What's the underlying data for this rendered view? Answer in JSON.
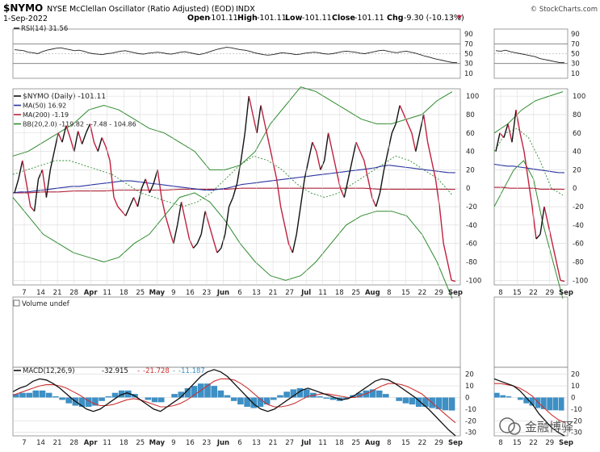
{
  "header": {
    "symbol": "$NYMO",
    "description": "NYSE McClellan Oscillator (Ratio Adjusted) (EOD)",
    "exchange": "INDX",
    "date": "1-Sep-2022",
    "open_label": "Open",
    "open": "-101.11",
    "high_label": "High",
    "high": "-101.11",
    "low_label": "Low",
    "low": "-101.11",
    "close_label": "Close",
    "close": "-101.11",
    "chg_label": "Chg",
    "chg": "-9.30 (-10.13%)",
    "source": "© StockCharts.com"
  },
  "watermark": "金融博驿",
  "colors": {
    "price": "#111111",
    "price_down": "#c0203e",
    "ma50": "#2a34a0",
    "ma200": "#b0243a",
    "bb": "#2e8b2e",
    "bb_mid": "#2e8b2e",
    "hist": "#3d8fc4",
    "signal": "#cc3333",
    "macd": "#111111",
    "grid": "#d8d8d8",
    "frame": "#888888"
  },
  "chart_data": {
    "type": "line",
    "x_tick_labels": [
      "7",
      "14",
      "21",
      "28",
      "Apr",
      "11",
      "18",
      "25",
      "May",
      "9",
      "16",
      "23",
      "Jun",
      "6",
      "13",
      "21",
      "27",
      "Jul",
      "11",
      "18",
      "25",
      "Aug",
      "8",
      "15",
      "22",
      "29",
      "Sep"
    ],
    "x_tick_months": [
      "Apr",
      "May",
      "Jun",
      "Jul",
      "Aug",
      "Sep"
    ],
    "zoom_tick_labels": [
      "8",
      "15",
      "22",
      "29",
      "Sep"
    ],
    "rsi": {
      "legend": "RSI(14) 31.56",
      "y_ticks": [
        90,
        70,
        50,
        30,
        10
      ],
      "ylim": [
        0,
        100
      ],
      "values": [
        58,
        57,
        56,
        53,
        52,
        50,
        54,
        57,
        59,
        61,
        62,
        60,
        58,
        56,
        57,
        55,
        52,
        50,
        49,
        48,
        50,
        51,
        53,
        55,
        56,
        54,
        52,
        50,
        49,
        51,
        52,
        53,
        52,
        50,
        49,
        51,
        53,
        54,
        52,
        50,
        48,
        50,
        53,
        56,
        59,
        61,
        63,
        62,
        60,
        58,
        57,
        55,
        52,
        50,
        48,
        47,
        48,
        50,
        52,
        51,
        50,
        48,
        49,
        51,
        52,
        53,
        52,
        50,
        49,
        50,
        52,
        54,
        55,
        54,
        53,
        51,
        50,
        52,
        54,
        56,
        57,
        55,
        53,
        52,
        54,
        55,
        53,
        51,
        48,
        45,
        43,
        40,
        38,
        36,
        34,
        32,
        31.56
      ]
    },
    "main": {
      "legends": [
        "$NYMO (Daily) -101.11",
        "MA(50) 16.92",
        "MA(200) -1.19",
        "BB(20,2.0) -119.82 - -7.48 - 104.86"
      ],
      "y_ticks": [
        100,
        80,
        60,
        40,
        20,
        0,
        -20,
        -40,
        -60,
        -80,
        -100
      ],
      "ylim": [
        -105,
        108
      ],
      "nymo": [
        -5,
        10,
        30,
        5,
        -20,
        -25,
        10,
        20,
        -10,
        20,
        40,
        60,
        50,
        68,
        55,
        40,
        62,
        48,
        60,
        70,
        50,
        40,
        55,
        45,
        30,
        -10,
        -20,
        -25,
        -30,
        -20,
        -10,
        -20,
        0,
        10,
        -5,
        5,
        20,
        -10,
        -30,
        -45,
        -60,
        -40,
        -15,
        -35,
        -55,
        -65,
        -60,
        -50,
        -25,
        -40,
        -55,
        -70,
        -65,
        -50,
        -20,
        -10,
        5,
        30,
        60,
        100,
        80,
        60,
        90,
        70,
        50,
        30,
        10,
        -20,
        -40,
        -60,
        -70,
        -50,
        -20,
        10,
        30,
        50,
        40,
        20,
        30,
        60,
        40,
        20,
        0,
        -10,
        10,
        30,
        50,
        40,
        30,
        10,
        -10,
        -20,
        -5,
        20,
        40,
        60,
        70,
        90,
        80,
        70,
        60,
        40,
        60,
        80,
        50,
        30,
        10,
        -20,
        -60,
        -80,
        -100,
        -101.11
      ],
      "ma50": [
        -5,
        -4,
        -4,
        -3,
        -2,
        -1,
        0,
        1,
        2,
        2,
        3,
        4,
        5,
        6,
        7,
        8,
        8,
        7,
        6,
        5,
        4,
        3,
        2,
        1,
        0,
        -1,
        -2,
        -2,
        -1,
        0,
        2,
        4,
        5,
        6,
        7,
        8,
        9,
        10,
        11,
        12,
        13,
        14,
        15,
        16,
        17,
        18,
        19,
        20,
        21,
        22,
        24,
        25,
        24,
        23,
        22,
        21,
        20,
        19,
        18,
        17,
        16.92
      ],
      "ma200": [
        -5,
        -5,
        -4,
        -4,
        -3,
        -3,
        -3,
        -2,
        -2,
        -2,
        -2,
        -1,
        -1,
        -1,
        -1,
        0,
        0,
        0,
        0,
        0,
        0,
        0,
        0,
        0,
        -1,
        -1,
        -1,
        -1,
        -1,
        -1.19
      ],
      "bb_upper": [
        35,
        40,
        50,
        60,
        70,
        85,
        90,
        85,
        75,
        65,
        60,
        50,
        40,
        20,
        20,
        25,
        40,
        70,
        90,
        110,
        105,
        95,
        85,
        75,
        70,
        70,
        75,
        80,
        95,
        104.86
      ],
      "bb_mid": [
        15,
        20,
        25,
        30,
        30,
        25,
        20,
        15,
        5,
        -5,
        -10,
        -15,
        -20,
        -15,
        -5,
        10,
        25,
        35,
        30,
        20,
        5,
        -5,
        -10,
        -5,
        5,
        15,
        25,
        35,
        30,
        20,
        10,
        -7.48
      ],
      "bb_lower": [
        -10,
        -30,
        -50,
        -60,
        -70,
        -75,
        -80,
        -75,
        -60,
        -50,
        -30,
        -10,
        -5,
        -15,
        -35,
        -60,
        -80,
        -95,
        -100,
        -95,
        -80,
        -60,
        -40,
        -30,
        -25,
        -25,
        -30,
        -50,
        -80,
        -119.82
      ]
    },
    "volume": {
      "legend": "Volume undef"
    },
    "macd": {
      "legend_prefix": "MACD(12,26,9)",
      "macd_value": "-32.915",
      "signal_value": "-21.728",
      "hist_value": "-11.187",
      "y_ticks": [
        20,
        10,
        0,
        -10,
        -20,
        -30
      ],
      "ylim": [
        -33,
        26
      ],
      "macd": [
        5,
        8,
        10,
        14,
        16,
        15,
        12,
        8,
        3,
        -2,
        -6,
        -10,
        -12,
        -10,
        -6,
        -2,
        2,
        4,
        2,
        -2,
        -6,
        -10,
        -12,
        -8,
        -4,
        0,
        6,
        12,
        18,
        22,
        24,
        22,
        18,
        12,
        6,
        0,
        -6,
        -10,
        -12,
        -10,
        -6,
        -2,
        2,
        6,
        8,
        6,
        4,
        2,
        0,
        -2,
        -1,
        2,
        6,
        10,
        14,
        16,
        15,
        12,
        8,
        4,
        0,
        -5,
        -10,
        -16,
        -22,
        -28,
        -32.915
      ],
      "signal": [
        2,
        4,
        6,
        8,
        10,
        11,
        11,
        10,
        8,
        5,
        2,
        -2,
        -5,
        -7,
        -7,
        -6,
        -4,
        -2,
        -1,
        -2,
        -4,
        -6,
        -8,
        -8,
        -7,
        -5,
        -2,
        2,
        6,
        10,
        14,
        16,
        16,
        15,
        12,
        8,
        3,
        -2,
        -6,
        -8,
        -8,
        -7,
        -5,
        -2,
        1,
        2,
        3,
        3,
        2,
        1,
        0,
        0,
        2,
        4,
        7,
        10,
        12,
        12,
        11,
        9,
        6,
        3,
        -2,
        -7,
        -12,
        -17,
        -21.728
      ],
      "hist": [
        3,
        4,
        4,
        6,
        6,
        4,
        1,
        -2,
        -5,
        -7,
        -8,
        -8,
        -7,
        -3,
        1,
        4,
        6,
        6,
        3,
        0,
        -2,
        -4,
        -4,
        0,
        3,
        5,
        8,
        10,
        12,
        12,
        10,
        6,
        2,
        -3,
        -6,
        -8,
        -9,
        -8,
        -6,
        -2,
        2,
        5,
        7,
        8,
        7,
        4,
        1,
        -1,
        -2,
        -3,
        -1,
        2,
        4,
        6,
        7,
        6,
        3,
        0,
        -3,
        -5,
        -6,
        -8,
        -8,
        -9,
        -10,
        -11,
        -11.187
      ]
    },
    "zoom": {
      "rsi_values": [
        56,
        55,
        57,
        54,
        52,
        50,
        48,
        46,
        44,
        40,
        38,
        36,
        34,
        32,
        31.56
      ],
      "nymo": [
        40,
        60,
        55,
        70,
        50,
        85,
        60,
        40,
        10,
        -20,
        -55,
        -50,
        -20,
        -40,
        -60,
        -80,
        -100,
        -101.11
      ],
      "ma50": [
        26,
        25,
        24,
        24,
        23,
        22,
        21,
        20,
        19,
        18,
        17,
        16.92
      ],
      "ma200": [
        1,
        1,
        0,
        0,
        0,
        0,
        -1,
        -1,
        -1,
        -1.19
      ],
      "bb_upper": [
        60,
        70,
        85,
        95,
        100,
        104.86
      ],
      "bb_mid": [
        40,
        60,
        65,
        55,
        30,
        0,
        -7.48
      ],
      "bb_lower": [
        -20,
        0,
        20,
        30,
        10,
        -40,
        -80,
        -119.82
      ],
      "macd": [
        16,
        14,
        12,
        10,
        6,
        0,
        -6,
        -14,
        -20,
        -26,
        -30,
        -32.915
      ],
      "signal": [
        12,
        12,
        11,
        10,
        8,
        5,
        1,
        -5,
        -10,
        -15,
        -19,
        -21.728
      ],
      "hist": [
        4,
        2,
        1,
        0,
        -2,
        -5,
        -7,
        -9,
        -10,
        -11,
        -11,
        -11.187
      ]
    }
  }
}
